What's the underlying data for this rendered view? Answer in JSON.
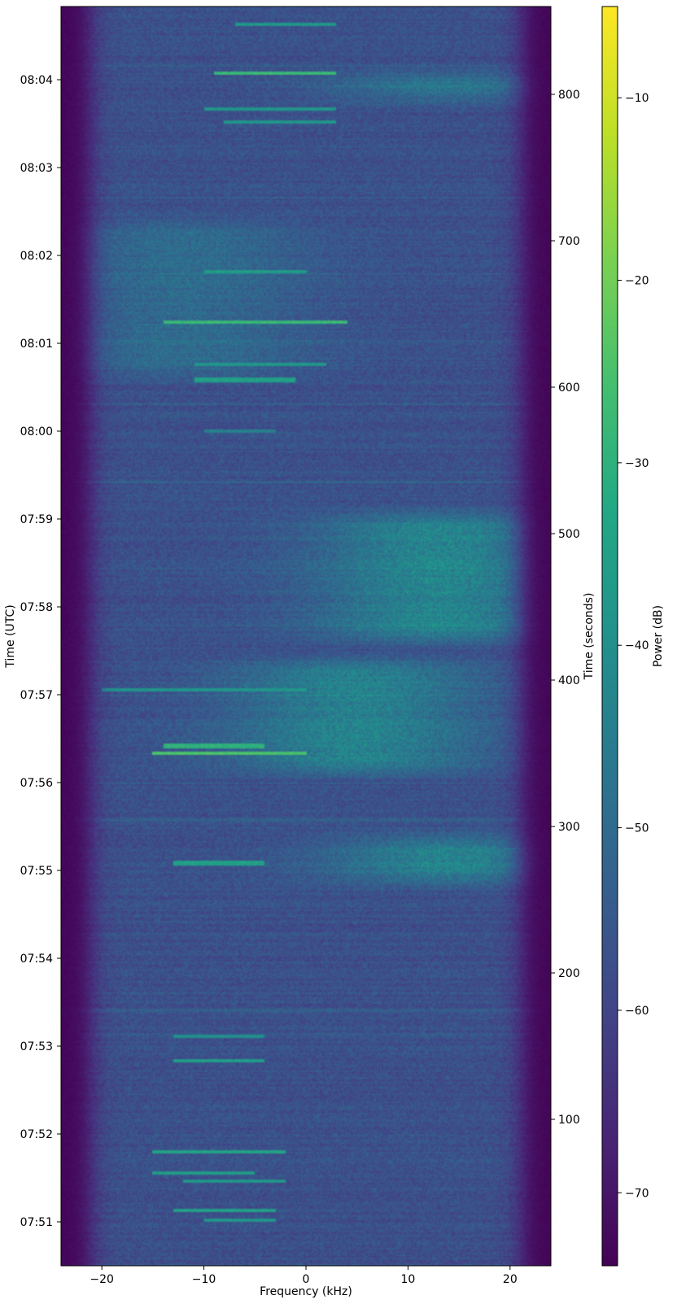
{
  "chart_data": {
    "type": "heatmap",
    "title": "",
    "xlabel": "Frequency (kHz)",
    "ylabel_left": "Time (UTC)",
    "ylabel_right": "Time (seconds)",
    "colorbar_label": "Power (dB)",
    "colormap": "viridis",
    "xlim": [
      -24,
      24
    ],
    "ylim_seconds": [
      0,
      860
    ],
    "x_ticks": [
      -20,
      -10,
      0,
      10,
      20
    ],
    "x_tick_labels": [
      "−20",
      "−10",
      "0",
      "10",
      "20"
    ],
    "utc_ticks": [
      {
        "label": "07:51",
        "seconds": 30
      },
      {
        "label": "07:52",
        "seconds": 90
      },
      {
        "label": "07:53",
        "seconds": 150
      },
      {
        "label": "07:54",
        "seconds": 210
      },
      {
        "label": "07:55",
        "seconds": 270
      },
      {
        "label": "07:56",
        "seconds": 330
      },
      {
        "label": "07:57",
        "seconds": 390
      },
      {
        "label": "07:58",
        "seconds": 450
      },
      {
        "label": "07:59",
        "seconds": 510
      },
      {
        "label": "08:00",
        "seconds": 570
      },
      {
        "label": "08:01",
        "seconds": 630
      },
      {
        "label": "08:02",
        "seconds": 690
      },
      {
        "label": "08:03",
        "seconds": 750
      },
      {
        "label": "08:04",
        "seconds": 810
      }
    ],
    "seconds_ticks": [
      100,
      200,
      300,
      400,
      500,
      600,
      700,
      800
    ],
    "colorbar_range_db": [
      -74,
      -5
    ],
    "colorbar_ticks": [
      -70,
      -60,
      -50,
      -40,
      -30,
      -20,
      -10
    ],
    "colorbar_tick_labels": [
      "−70",
      "−60",
      "−50",
      "−40",
      "−30",
      "−20",
      "−10"
    ],
    "noise_floor_db": -57,
    "band_edges_khz": [
      -21,
      21
    ],
    "strong_segments": [
      {
        "t_start": 255,
        "t_end": 300,
        "f_center": 14,
        "level_db": -42
      },
      {
        "t_start": 330,
        "t_end": 420,
        "f_center": 5,
        "level_db": -42
      },
      {
        "t_start": 420,
        "t_end": 520,
        "f_center": 13,
        "level_db": -41
      },
      {
        "t_start": 790,
        "t_end": 820,
        "f_center": 14,
        "level_db": -44
      },
      {
        "t_start": 600,
        "t_end": 720,
        "f_center": -12,
        "level_db": -49
      }
    ],
    "carrier_lines": [
      {
        "t": 31,
        "f_start": -10,
        "f_end": -3,
        "level_db": -38
      },
      {
        "t": 38,
        "f_start": -13,
        "f_end": -3,
        "level_db": -35
      },
      {
        "t": 58,
        "f_start": -12,
        "f_end": -2,
        "level_db": -38
      },
      {
        "t": 63,
        "f_start": -15,
        "f_end": -5,
        "level_db": -36
      },
      {
        "t": 78,
        "f_start": -15,
        "f_end": -2,
        "level_db": -34
      },
      {
        "t": 140,
        "f_start": -13,
        "f_end": -4,
        "level_db": -36
      },
      {
        "t": 157,
        "f_start": -13,
        "f_end": -4,
        "level_db": -40
      },
      {
        "t": 275,
        "f_start": -13,
        "f_end": -4,
        "level_db": -35
      },
      {
        "t": 350,
        "f_start": -15,
        "f_end": 0,
        "level_db": -25
      },
      {
        "t": 355,
        "f_start": -14,
        "f_end": -4,
        "level_db": -30
      },
      {
        "t": 393,
        "f_start": -20,
        "f_end": 0,
        "level_db": -38
      },
      {
        "t": 570,
        "f_start": -10,
        "f_end": -3,
        "level_db": -44
      },
      {
        "t": 605,
        "f_start": -11,
        "f_end": -1,
        "level_db": -35
      },
      {
        "t": 616,
        "f_start": -11,
        "f_end": 2,
        "level_db": -38
      },
      {
        "t": 644,
        "f_start": -14,
        "f_end": 4,
        "level_db": -28
      },
      {
        "t": 679,
        "f_start": -10,
        "f_end": 0,
        "level_db": -36
      },
      {
        "t": 781,
        "f_start": -8,
        "f_end": 3,
        "level_db": -38
      },
      {
        "t": 790,
        "f_start": -10,
        "f_end": 3,
        "level_db": -38
      },
      {
        "t": 814,
        "f_start": -9,
        "f_end": 3,
        "level_db": -28
      },
      {
        "t": 848,
        "f_start": -7,
        "f_end": 3,
        "level_db": -38
      }
    ]
  }
}
